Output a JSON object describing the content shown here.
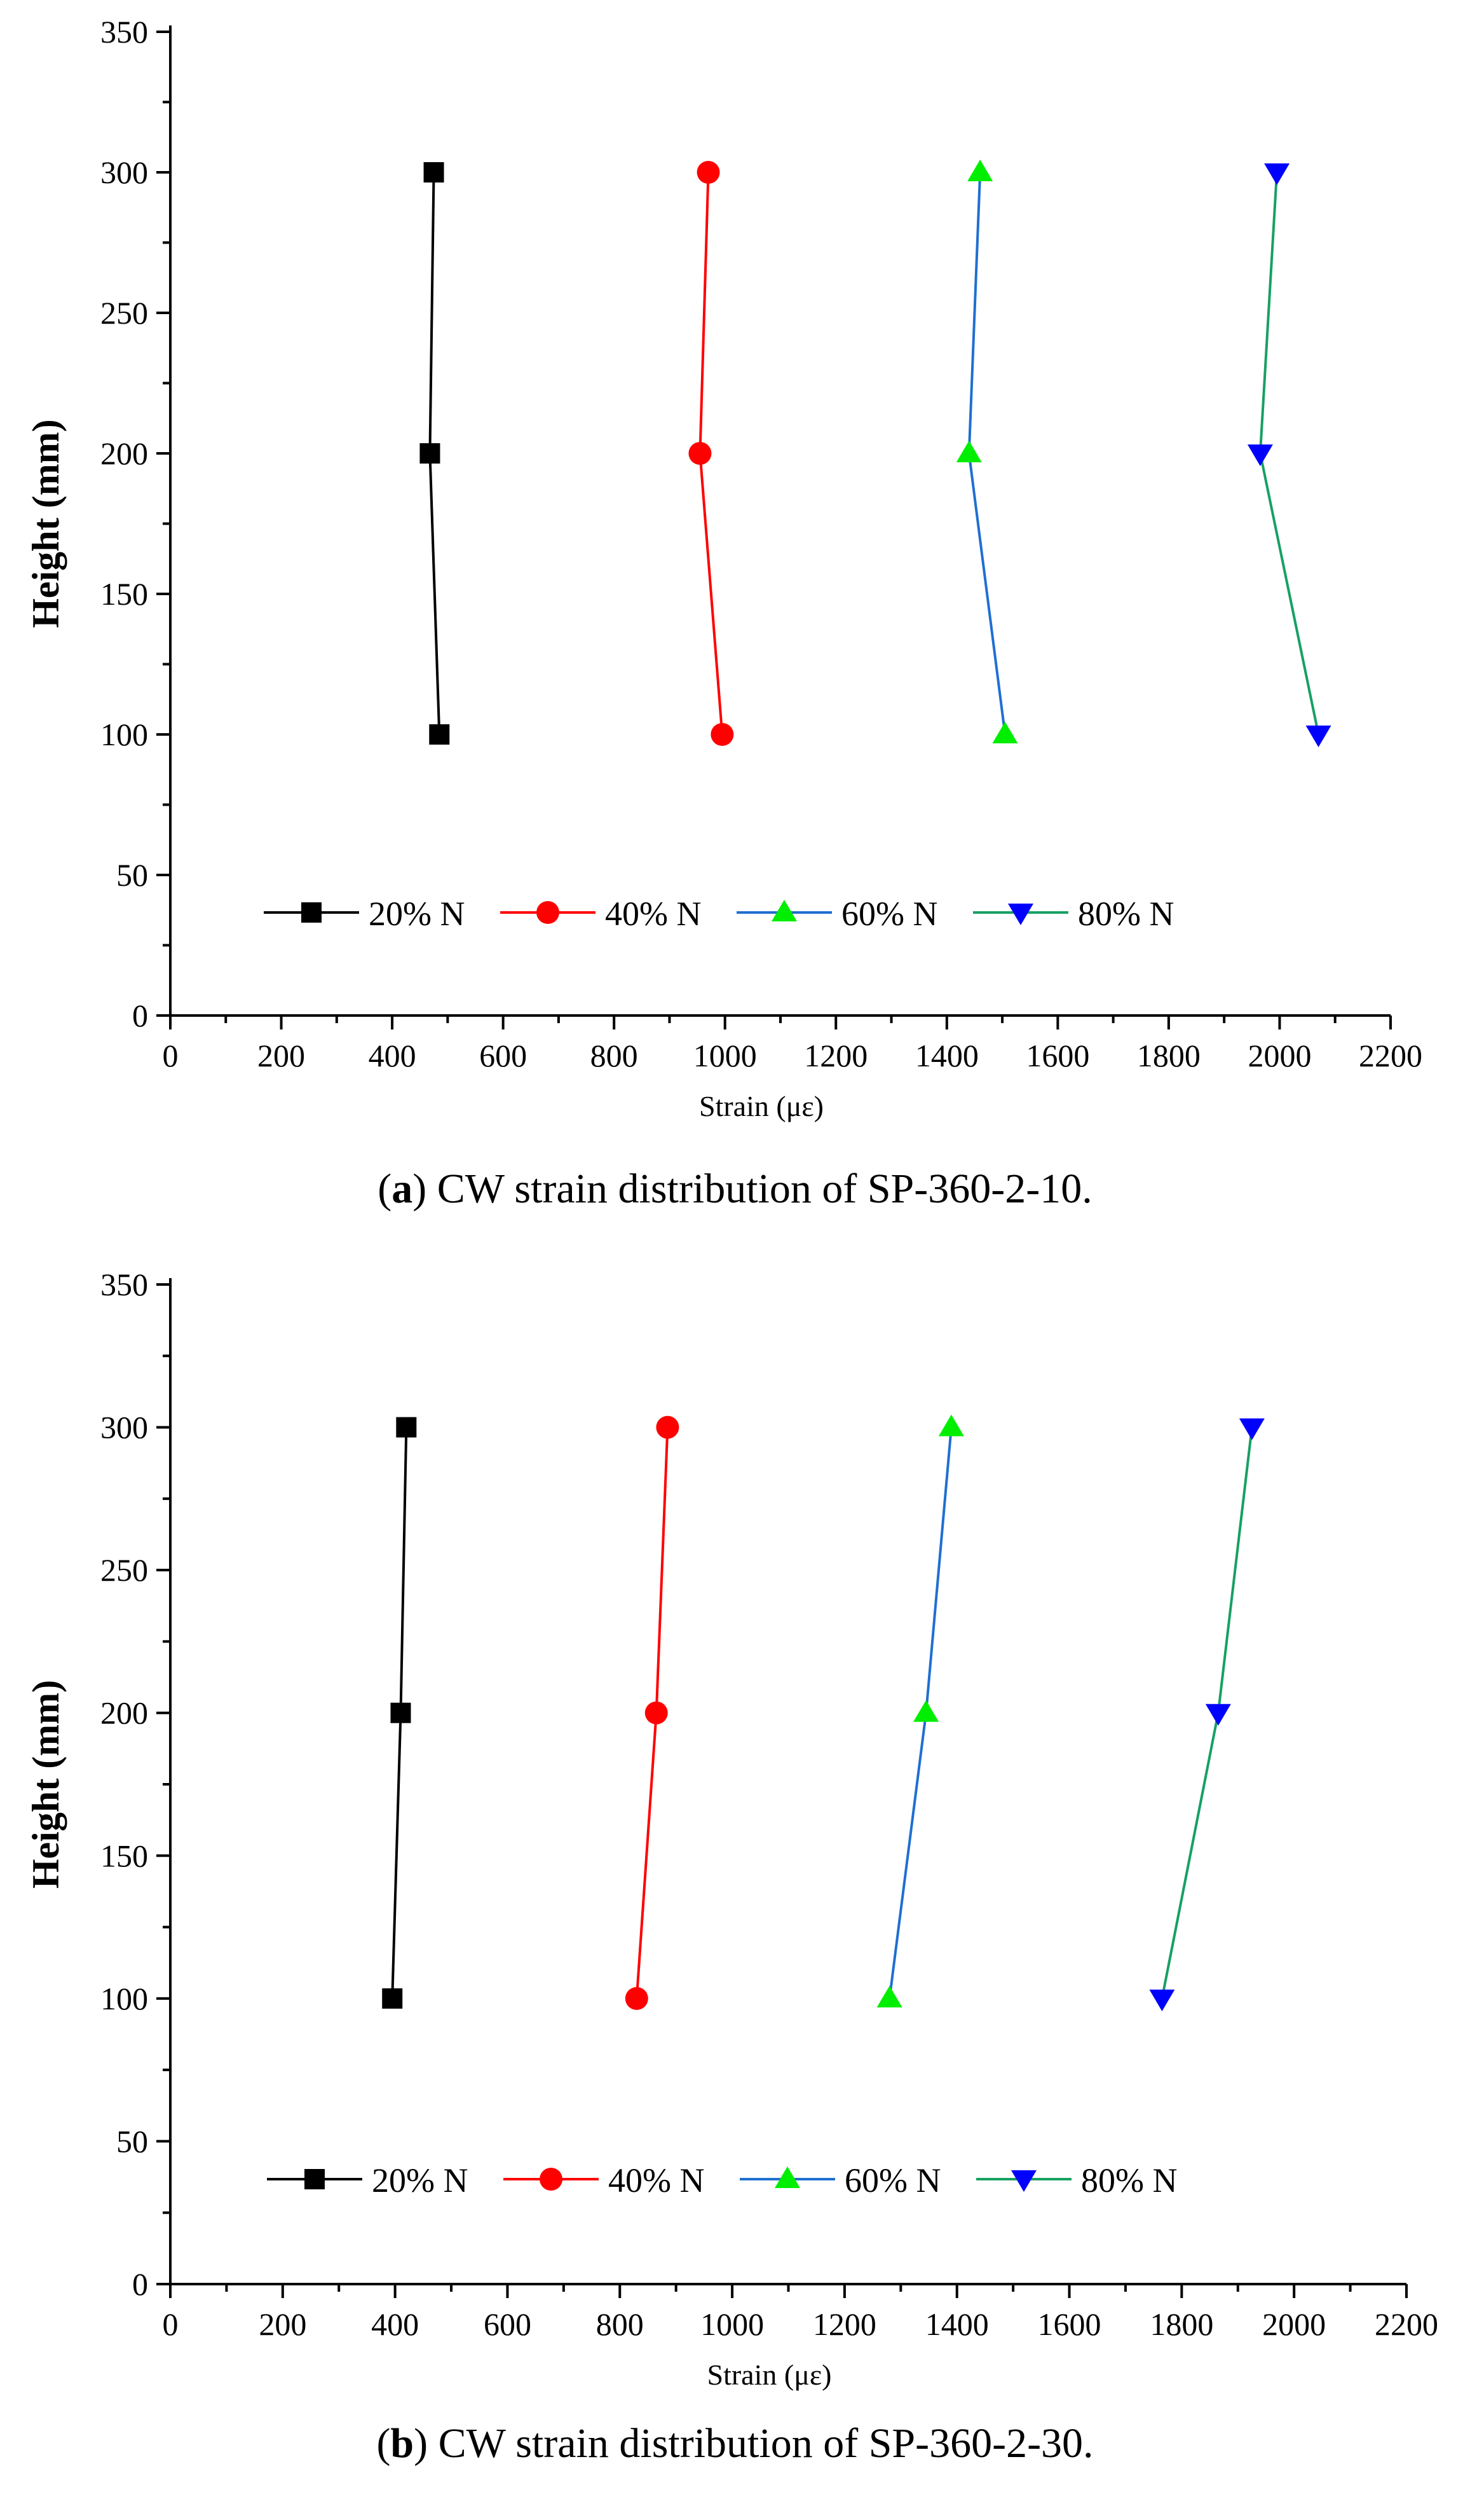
{
  "chart_data": [
    {
      "type": "line",
      "id": "a",
      "caption_label": "a",
      "caption_text": "CW strain distribution of SP-360-2-10.",
      "xlabel": "Strain (με)",
      "ylabel": "Height (mm)",
      "xlim": [
        0,
        2200
      ],
      "ylim": [
        0,
        350
      ],
      "xticks": [
        0,
        200,
        400,
        600,
        800,
        1000,
        1200,
        1400,
        1600,
        1800,
        2000,
        2200
      ],
      "yticks": [
        0,
        50,
        100,
        150,
        200,
        250,
        300,
        350
      ],
      "legend_position": "bottom-center",
      "series": [
        {
          "name": "20% N",
          "color": "#000000",
          "marker": "square",
          "x": [
            485,
            468,
            475
          ],
          "y": [
            100,
            200,
            300
          ]
        },
        {
          "name": "40% N",
          "color": "#ff0000",
          "marker": "circle",
          "x": [
            995,
            955,
            970
          ],
          "y": [
            100,
            200,
            300
          ]
        },
        {
          "name": "60% N",
          "color": "#1f6fd1",
          "marker_color": "#00ee00",
          "marker": "triangle-up",
          "x": [
            1505,
            1440,
            1460
          ],
          "y": [
            100,
            200,
            300
          ]
        },
        {
          "name": "80% N",
          "color": "#17a063",
          "marker_color": "#0000ff",
          "marker": "triangle-down",
          "x": [
            2070,
            1965,
            1995
          ],
          "y": [
            100,
            200,
            300
          ]
        }
      ]
    },
    {
      "type": "line",
      "id": "b",
      "caption_label": "b",
      "caption_text": "CW strain distribution of SP-360-2-30.",
      "xlabel": "Strain (με)",
      "ylabel": "Height (mm)",
      "xlim": [
        0,
        2200
      ],
      "ylim": [
        0,
        350
      ],
      "xticks": [
        0,
        200,
        400,
        600,
        800,
        1000,
        1200,
        1400,
        1600,
        1800,
        2000,
        2200
      ],
      "yticks": [
        0,
        50,
        100,
        150,
        200,
        250,
        300,
        350
      ],
      "legend_position": "bottom-center",
      "series": [
        {
          "name": "20% N",
          "color": "#000000",
          "marker": "square",
          "x": [
            395,
            410,
            420
          ],
          "y": [
            100,
            200,
            300
          ]
        },
        {
          "name": "40% N",
          "color": "#ff0000",
          "marker": "circle",
          "x": [
            830,
            865,
            885
          ],
          "y": [
            100,
            200,
            300
          ]
        },
        {
          "name": "60% N",
          "color": "#1f6fd1",
          "marker_color": "#00ee00",
          "marker": "triangle-up",
          "x": [
            1280,
            1345,
            1390
          ],
          "y": [
            100,
            200,
            300
          ]
        },
        {
          "name": "80% N",
          "color": "#17a063",
          "marker_color": "#0000ff",
          "marker": "triangle-down",
          "x": [
            1765,
            1865,
            1925
          ],
          "y": [
            100,
            200,
            300
          ]
        }
      ]
    }
  ]
}
